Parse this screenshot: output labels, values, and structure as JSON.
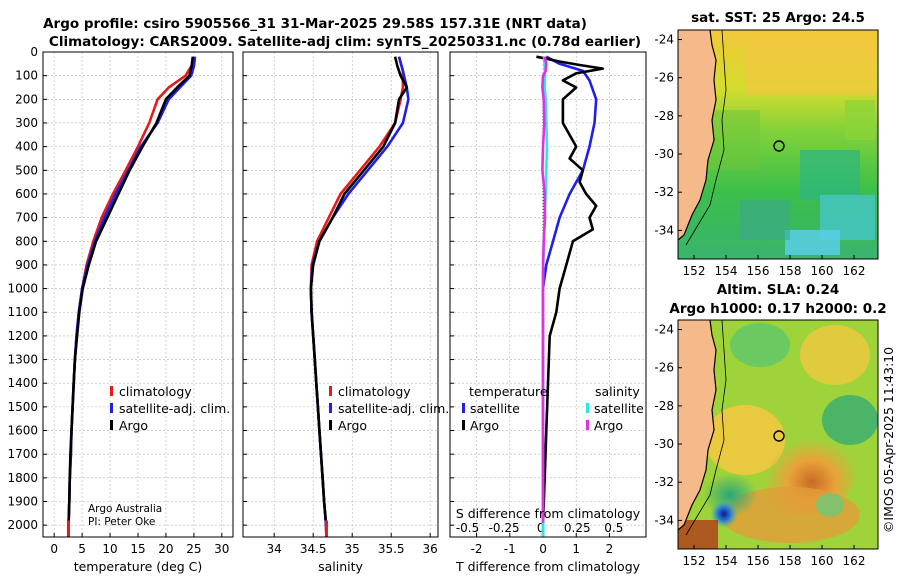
{
  "title": {
    "line1": "Argo profile: csiro 5905566_31 31-Mar-2025 29.58S 157.31E (NRT data)",
    "line2": "Climatology: CARS2009. Satellite-adj clim: synTS_20250331.nc (0.78d earlier)"
  },
  "credit": {
    "line1": "Argo Australia",
    "line2": "PI: Peter Oke"
  },
  "footer": "©IMOS 05-Apr-2025 11:43:10",
  "colors": {
    "climatology": "#e41a1c",
    "satellite": "#1f1fe6",
    "argo": "#000000",
    "sat_s": "#2ee6e6",
    "argo_s": "#e62ee6",
    "land": "#f5b98a"
  },
  "chart_data": [
    {
      "id": "temperature",
      "type": "line",
      "xlabel": "temperature (deg C)",
      "ylabel": "",
      "xlim": [
        -2,
        32
      ],
      "ylim": [
        2050,
        0
      ],
      "xticks": [
        0,
        5,
        10,
        15,
        20,
        25,
        30
      ],
      "yticks": [
        0,
        100,
        200,
        300,
        400,
        500,
        600,
        700,
        800,
        900,
        1000,
        1100,
        1200,
        1300,
        1400,
        1500,
        1600,
        1700,
        1800,
        1900,
        2000
      ],
      "legend": [
        "climatology",
        "satellite-adj. clim.",
        "Argo"
      ],
      "series": [
        {
          "name": "climatology",
          "color": "#e41a1c",
          "pts": [
            [
              25,
              20
            ],
            [
              24.8,
              50
            ],
            [
              23.5,
              100
            ],
            [
              20.5,
              150
            ],
            [
              18.5,
              200
            ],
            [
              17,
              300
            ],
            [
              15,
              400
            ],
            [
              12.8,
              500
            ],
            [
              10.5,
              600
            ],
            [
              8.5,
              700
            ],
            [
              7,
              800
            ],
            [
              5.8,
              900
            ],
            [
              5,
              1000
            ],
            [
              4.4,
              1100
            ],
            [
              4,
              1200
            ],
            [
              3.7,
              1300
            ],
            [
              3.5,
              1400
            ],
            [
              3.3,
              1500
            ],
            [
              3.1,
              1600
            ],
            [
              3,
              1700
            ],
            [
              2.8,
              1800
            ],
            [
              2.7,
              1900
            ],
            [
              2.6,
              1980
            ],
            [
              2.55,
              2050
            ]
          ]
        },
        {
          "name": "satellite-adj. clim.",
          "color": "#1f1fe6",
          "pts": [
            [
              25.2,
              20
            ],
            [
              25,
              60
            ],
            [
              24.5,
              100
            ],
            [
              22.5,
              150
            ],
            [
              20.5,
              200
            ],
            [
              18.5,
              300
            ],
            [
              15.5,
              400
            ],
            [
              13.3,
              500
            ],
            [
              11,
              600
            ],
            [
              9,
              700
            ],
            [
              7.3,
              800
            ],
            [
              6,
              900
            ],
            [
              5,
              1000
            ],
            [
              4.4,
              1100
            ],
            [
              4,
              1200
            ],
            [
              3.7,
              1300
            ],
            [
              3.5,
              1400
            ],
            [
              3.3,
              1500
            ],
            [
              3.1,
              1600
            ],
            [
              3,
              1700
            ],
            [
              2.8,
              1800
            ],
            [
              2.7,
              1900
            ],
            [
              2.6,
              1980
            ],
            [
              2.55,
              2050
            ]
          ]
        },
        {
          "name": "Argo",
          "color": "#000000",
          "pts": [
            [
              24.8,
              20
            ],
            [
              24.6,
              60
            ],
            [
              24.2,
              100
            ],
            [
              22,
              150
            ],
            [
              20,
              200
            ],
            [
              18.3,
              300
            ],
            [
              15.8,
              400
            ],
            [
              13.5,
              500
            ],
            [
              11.5,
              600
            ],
            [
              9.5,
              700
            ],
            [
              7.5,
              800
            ],
            [
              6.2,
              900
            ],
            [
              5.1,
              1000
            ],
            [
              4.5,
              1100
            ],
            [
              4.1,
              1200
            ],
            [
              3.7,
              1300
            ],
            [
              3.5,
              1400
            ],
            [
              3.3,
              1500
            ],
            [
              3.1,
              1600
            ],
            [
              2.9,
              1700
            ],
            [
              2.8,
              1800
            ],
            [
              2.7,
              1900
            ],
            [
              2.6,
              1980
            ]
          ]
        }
      ]
    },
    {
      "id": "salinity",
      "type": "line",
      "xlabel": "salinity",
      "ylabel": "",
      "xlim": [
        33.6,
        36.1
      ],
      "ylim": [
        2050,
        0
      ],
      "xticks": [
        34,
        34.5,
        35,
        35.5,
        36
      ],
      "yticks": [
        0,
        100,
        200,
        300,
        400,
        500,
        600,
        700,
        800,
        900,
        1000,
        1100,
        1200,
        1300,
        1400,
        1500,
        1600,
        1700,
        1800,
        1900,
        2000
      ],
      "legend": [
        "climatology",
        "satellite-adj. clim.",
        "Argo"
      ],
      "series": [
        {
          "name": "climatology",
          "color": "#e41a1c",
          "pts": [
            [
              35.6,
              20
            ],
            [
              35.65,
              80
            ],
            [
              35.65,
              150
            ],
            [
              35.62,
              200
            ],
            [
              35.55,
              300
            ],
            [
              35.35,
              400
            ],
            [
              35.1,
              500
            ],
            [
              34.85,
              600
            ],
            [
              34.7,
              700
            ],
            [
              34.55,
              800
            ],
            [
              34.48,
              900
            ],
            [
              34.47,
              1000
            ],
            [
              34.48,
              1100
            ],
            [
              34.5,
              1200
            ],
            [
              34.52,
              1300
            ],
            [
              34.54,
              1400
            ],
            [
              34.56,
              1500
            ],
            [
              34.58,
              1600
            ],
            [
              34.6,
              1700
            ],
            [
              34.62,
              1800
            ],
            [
              34.64,
              1900
            ],
            [
              34.66,
              1980
            ],
            [
              34.67,
              2050
            ]
          ]
        },
        {
          "name": "satellite-adj. clim.",
          "color": "#1f1fe6",
          "pts": [
            [
              35.6,
              20
            ],
            [
              35.65,
              80
            ],
            [
              35.7,
              150
            ],
            [
              35.72,
              200
            ],
            [
              35.65,
              300
            ],
            [
              35.45,
              400
            ],
            [
              35.2,
              500
            ],
            [
              34.95,
              600
            ],
            [
              34.75,
              700
            ],
            [
              34.58,
              800
            ],
            [
              34.49,
              900
            ],
            [
              34.47,
              1000
            ],
            [
              34.48,
              1100
            ],
            [
              34.5,
              1200
            ],
            [
              34.52,
              1300
            ],
            [
              34.54,
              1400
            ],
            [
              34.56,
              1500
            ],
            [
              34.58,
              1600
            ],
            [
              34.6,
              1700
            ],
            [
              34.62,
              1800
            ],
            [
              34.64,
              1900
            ],
            [
              34.66,
              1980
            ],
            [
              34.67,
              2050
            ]
          ]
        },
        {
          "name": "Argo",
          "color": "#000000",
          "pts": [
            [
              35.55,
              20
            ],
            [
              35.58,
              60
            ],
            [
              35.62,
              100
            ],
            [
              35.7,
              150
            ],
            [
              35.6,
              200
            ],
            [
              35.55,
              300
            ],
            [
              35.4,
              400
            ],
            [
              35.15,
              500
            ],
            [
              34.9,
              600
            ],
            [
              34.75,
              700
            ],
            [
              34.58,
              800
            ],
            [
              34.5,
              900
            ],
            [
              34.47,
              1000
            ],
            [
              34.48,
              1100
            ],
            [
              34.5,
              1200
            ],
            [
              34.52,
              1300
            ],
            [
              34.54,
              1400
            ],
            [
              34.56,
              1500
            ],
            [
              34.58,
              1600
            ],
            [
              34.6,
              1700
            ],
            [
              34.62,
              1800
            ],
            [
              34.64,
              1900
            ],
            [
              34.66,
              1980
            ]
          ]
        }
      ]
    },
    {
      "id": "difference",
      "type": "line",
      "xlabel": "T difference from climatology",
      "top_label": "S difference from climatology",
      "xlim": [
        -2.8,
        3.1
      ],
      "ylim": [
        2050,
        0
      ],
      "xticks": [
        -2,
        -1,
        0,
        1,
        2
      ],
      "sticks": [
        -0.5,
        -0.25,
        0,
        0.25,
        0.5
      ],
      "sticklabels": [
        "-0.5",
        "-0.25",
        "0",
        "0.25",
        "0.5"
      ],
      "yticks": [
        0,
        100,
        200,
        300,
        400,
        500,
        600,
        700,
        800,
        900,
        1000,
        1100,
        1200,
        1300,
        1400,
        1500,
        1600,
        1700,
        1800,
        1900,
        2000
      ],
      "legend_left_title": "temperature",
      "legend_right_title": "salinity",
      "legend": [
        "satellite",
        "Argo",
        "satellite",
        "Argo"
      ],
      "series": [
        {
          "name": "T satellite",
          "color": "#1f1fe6",
          "pts": [
            [
              0.1,
              20
            ],
            [
              0.5,
              50
            ],
            [
              1.2,
              80
            ],
            [
              1.4,
              120
            ],
            [
              1.6,
              200
            ],
            [
              1.55,
              300
            ],
            [
              1.4,
              400
            ],
            [
              1.2,
              500
            ],
            [
              0.8,
              600
            ],
            [
              0.5,
              700
            ],
            [
              0.3,
              800
            ],
            [
              0.1,
              900
            ],
            [
              0,
              1000
            ],
            [
              0,
              1500
            ],
            [
              0,
              2000
            ]
          ]
        },
        {
          "name": "T Argo",
          "color": "#000000",
          "pts": [
            [
              -0.2,
              20
            ],
            [
              0.5,
              40
            ],
            [
              1.1,
              55
            ],
            [
              1.8,
              70
            ],
            [
              1.0,
              90
            ],
            [
              0.6,
              120
            ],
            [
              1.0,
              150
            ],
            [
              0.6,
              200
            ],
            [
              0.6,
              300
            ],
            [
              1.0,
              400
            ],
            [
              0.8,
              450
            ],
            [
              1.2,
              500
            ],
            [
              1.1,
              550
            ],
            [
              1.3,
              600
            ],
            [
              1.6,
              650
            ],
            [
              1.4,
              700
            ],
            [
              1.5,
              750
            ],
            [
              0.9,
              800
            ],
            [
              0.7,
              900
            ],
            [
              0.5,
              1000
            ],
            [
              0.4,
              1100
            ],
            [
              0.2,
              1200
            ],
            [
              0.15,
              1400
            ],
            [
              0.1,
              1600
            ],
            [
              0.05,
              1800
            ],
            [
              0,
              2000
            ]
          ]
        },
        {
          "name": "S satellite",
          "color": "#2ee6e6",
          "pts": [
            [
              0.03,
              20
            ],
            [
              0.05,
              60
            ],
            [
              0.06,
              100
            ],
            [
              0.05,
              150
            ],
            [
              0.08,
              200
            ],
            [
              0.1,
              300
            ],
            [
              0.12,
              400
            ],
            [
              0.1,
              500
            ],
            [
              0.08,
              600
            ],
            [
              0.05,
              700
            ],
            [
              0.03,
              800
            ],
            [
              0.01,
              900
            ],
            [
              0,
              1000
            ],
            [
              0,
              1500
            ],
            [
              0,
              2000
            ]
          ]
        },
        {
          "name": "S Argo",
          "color": "#e62ee6",
          "pts": [
            [
              0.05,
              20
            ],
            [
              0.1,
              50
            ],
            [
              0.08,
              80
            ],
            [
              0.0,
              100
            ],
            [
              -0.02,
              150
            ],
            [
              0.02,
              200
            ],
            [
              0.04,
              300
            ],
            [
              0,
              400
            ],
            [
              -0.02,
              500
            ],
            [
              0.05,
              600
            ],
            [
              0.06,
              700
            ],
            [
              0.02,
              800
            ],
            [
              0,
              900
            ],
            [
              0,
              1000
            ],
            [
              0,
              1500
            ],
            [
              0,
              2000
            ]
          ]
        }
      ]
    },
    {
      "id": "sst_map",
      "type": "heatmap",
      "title": "sat. SST: 25 Argo: 24.5",
      "xticks": [
        152,
        154,
        156,
        158,
        160,
        162
      ],
      "yticks": [
        -24,
        -26,
        -28,
        -30,
        -32,
        -34
      ],
      "xlim": [
        151,
        163.5
      ],
      "ylim": [
        -23.5,
        -35.5
      ],
      "argo_position": [
        157.31,
        -29.58
      ]
    },
    {
      "id": "sla_map",
      "type": "heatmap",
      "title_line1": "Altim. SLA: 0.24",
      "title_line2": "Argo h1000: 0.17 h2000: 0.2",
      "xticks": [
        152,
        154,
        156,
        158,
        160,
        162
      ],
      "yticks": [
        -24,
        -26,
        -28,
        -30,
        -32,
        -34
      ],
      "xlim": [
        151,
        163.5
      ],
      "ylim": [
        -23.5,
        -35.5
      ],
      "argo_position": [
        157.31,
        -29.58
      ]
    }
  ]
}
